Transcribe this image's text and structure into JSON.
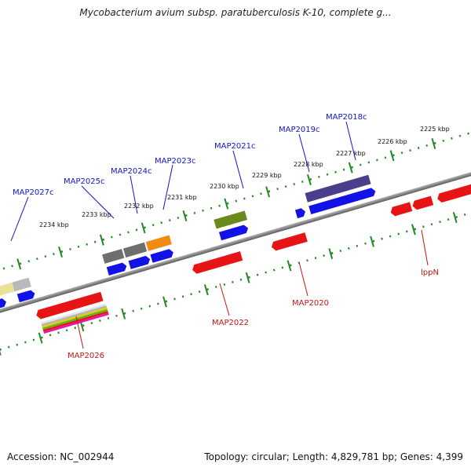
{
  "title": "Mycobacterium avium subsp. paratuberculosis K-10, complete g...",
  "accession": "Accession: NC_002944",
  "summary": "Topology: circular; Length: 4,829,781 bp; Genes: 4,399",
  "colors": {
    "forward_label": "#1414c8",
    "reverse_label": "#c81414",
    "backbone": "#8c8c8c",
    "ticks": "#228822"
  },
  "scale_labels": [
    "2225 kbp",
    "2226 kbp",
    "2227 kbp",
    "2228 kbp",
    "2229 kbp",
    "2230 kbp",
    "2231 kbp",
    "2232 kbp",
    "2233 kbp",
    "2234 kbp"
  ],
  "forward_labels": [
    "MAP2027c",
    "MAP2025c",
    "MAP2024c",
    "MAP2023c",
    "MAP2021c",
    "MAP2019c",
    "MAP2018c"
  ],
  "reverse_labels": [
    "MAP2026",
    "MAP2022",
    "MAP2020",
    "lppN"
  ]
}
